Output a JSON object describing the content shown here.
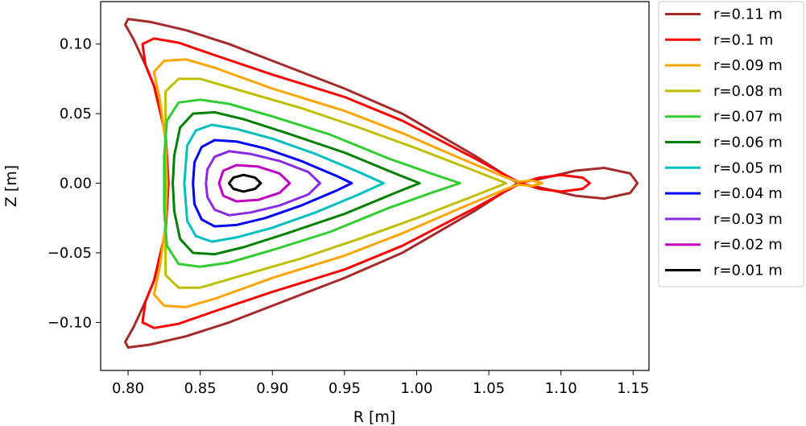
{
  "chart_data": {
    "type": "line",
    "xlabel": "R [m]",
    "ylabel": "Z [m]",
    "xlim": [
      0.781,
      1.161
    ],
    "ylim": [
      -0.1345,
      0.1305
    ],
    "grid": false,
    "legend_position": "outside-right",
    "x_ticks": [
      {
        "value": 0.8,
        "label": "0.80"
      },
      {
        "value": 0.85,
        "label": "0.85"
      },
      {
        "value": 0.9,
        "label": "0.90"
      },
      {
        "value": 0.95,
        "label": "0.95"
      },
      {
        "value": 1.0,
        "label": "1.00"
      },
      {
        "value": 1.05,
        "label": "1.05"
      },
      {
        "value": 1.1,
        "label": "1.10"
      },
      {
        "value": 1.15,
        "label": "1.15"
      }
    ],
    "y_ticks": [
      {
        "value": 0.1,
        "label": "0.10"
      },
      {
        "value": 0.05,
        "label": "0.05"
      },
      {
        "value": 0.0,
        "label": "0.00"
      },
      {
        "value": -0.05,
        "label": "−0.05"
      },
      {
        "value": -0.1,
        "label": "−0.10"
      }
    ],
    "series": [
      {
        "name": "r=0.11 m",
        "color": "#a52a2a",
        "points": [
          [
            1.153,
            0.0
          ],
          [
            1.148,
            0.007
          ],
          [
            1.13,
            0.011
          ],
          [
            1.11,
            0.009
          ],
          [
            1.085,
            0.003
          ],
          [
            1.07,
            0.0
          ],
          [
            1.04,
            0.02
          ],
          [
            0.99,
            0.05
          ],
          [
            0.95,
            0.068
          ],
          [
            0.9,
            0.088
          ],
          [
            0.87,
            0.1
          ],
          [
            0.84,
            0.11
          ],
          [
            0.815,
            0.116
          ],
          [
            0.8,
            0.118
          ],
          [
            0.798,
            0.114
          ],
          [
            0.804,
            0.103
          ],
          [
            0.812,
            0.085
          ],
          [
            0.818,
            0.07
          ],
          [
            0.826,
            0.035
          ],
          [
            0.828,
            0.0
          ],
          [
            0.826,
            -0.035
          ],
          [
            0.818,
            -0.07
          ],
          [
            0.812,
            -0.085
          ],
          [
            0.804,
            -0.103
          ],
          [
            0.798,
            -0.114
          ],
          [
            0.8,
            -0.118
          ],
          [
            0.815,
            -0.116
          ],
          [
            0.84,
            -0.11
          ],
          [
            0.87,
            -0.1
          ],
          [
            0.9,
            -0.088
          ],
          [
            0.95,
            -0.068
          ],
          [
            0.99,
            -0.05
          ],
          [
            1.04,
            -0.02
          ],
          [
            1.07,
            0.0
          ],
          [
            1.085,
            -0.003
          ],
          [
            1.11,
            -0.009
          ],
          [
            1.13,
            -0.011
          ],
          [
            1.148,
            -0.007
          ],
          [
            1.153,
            0.0
          ]
        ]
      },
      {
        "name": "r=0.1 m",
        "color": "#ff0000",
        "points": [
          [
            1.12,
            0.0
          ],
          [
            1.115,
            0.004
          ],
          [
            1.1,
            0.006
          ],
          [
            1.085,
            0.004
          ],
          [
            1.072,
            0.0
          ],
          [
            1.04,
            0.018
          ],
          [
            0.99,
            0.045
          ],
          [
            0.95,
            0.062
          ],
          [
            0.9,
            0.078
          ],
          [
            0.86,
            0.092
          ],
          [
            0.835,
            0.101
          ],
          [
            0.818,
            0.104
          ],
          [
            0.81,
            0.1
          ],
          [
            0.812,
            0.085
          ],
          [
            0.818,
            0.07
          ],
          [
            0.826,
            0.035
          ],
          [
            0.828,
            0.0
          ],
          [
            0.826,
            -0.035
          ],
          [
            0.818,
            -0.07
          ],
          [
            0.812,
            -0.085
          ],
          [
            0.81,
            -0.1
          ],
          [
            0.818,
            -0.104
          ],
          [
            0.835,
            -0.101
          ],
          [
            0.86,
            -0.092
          ],
          [
            0.9,
            -0.078
          ],
          [
            0.95,
            -0.062
          ],
          [
            0.99,
            -0.045
          ],
          [
            1.04,
            -0.018
          ],
          [
            1.072,
            0.0
          ],
          [
            1.085,
            -0.004
          ],
          [
            1.1,
            -0.006
          ],
          [
            1.115,
            -0.004
          ],
          [
            1.12,
            0.0
          ]
        ]
      },
      {
        "name": "r=0.09 m",
        "color": "#ffa500",
        "points": [
          [
            1.087,
            0.0
          ],
          [
            1.08,
            0.002
          ],
          [
            1.07,
            0.001
          ],
          [
            1.06,
            0.005
          ],
          [
            1.03,
            0.018
          ],
          [
            0.99,
            0.036
          ],
          [
            0.95,
            0.052
          ],
          [
            0.9,
            0.068
          ],
          [
            0.86,
            0.083
          ],
          [
            0.84,
            0.089
          ],
          [
            0.825,
            0.088
          ],
          [
            0.818,
            0.08
          ],
          [
            0.822,
            0.06
          ],
          [
            0.826,
            0.03
          ],
          [
            0.827,
            0.0
          ],
          [
            0.826,
            -0.03
          ],
          [
            0.822,
            -0.06
          ],
          [
            0.818,
            -0.08
          ],
          [
            0.825,
            -0.088
          ],
          [
            0.84,
            -0.089
          ],
          [
            0.86,
            -0.083
          ],
          [
            0.9,
            -0.068
          ],
          [
            0.95,
            -0.052
          ],
          [
            0.99,
            -0.036
          ],
          [
            1.03,
            -0.018
          ],
          [
            1.06,
            -0.005
          ],
          [
            1.07,
            -0.001
          ],
          [
            1.08,
            -0.002
          ],
          [
            1.087,
            0.0
          ]
        ]
      },
      {
        "name": "r=0.08 m",
        "color": "#bfbf00",
        "points": [
          [
            1.062,
            0.0
          ],
          [
            1.04,
            0.009
          ],
          [
            1.0,
            0.025
          ],
          [
            0.96,
            0.04
          ],
          [
            0.92,
            0.054
          ],
          [
            0.88,
            0.066
          ],
          [
            0.85,
            0.075
          ],
          [
            0.835,
            0.075
          ],
          [
            0.826,
            0.066
          ],
          [
            0.826,
            0.04
          ],
          [
            0.826,
            0.0
          ],
          [
            0.826,
            -0.04
          ],
          [
            0.826,
            -0.066
          ],
          [
            0.835,
            -0.075
          ],
          [
            0.85,
            -0.075
          ],
          [
            0.88,
            -0.066
          ],
          [
            0.92,
            -0.054
          ],
          [
            0.96,
            -0.04
          ],
          [
            1.0,
            -0.025
          ],
          [
            1.04,
            -0.009
          ],
          [
            1.062,
            0.0
          ]
        ]
      },
      {
        "name": "r=0.07 m",
        "color": "#32cd32",
        "points": [
          [
            1.03,
            0.0
          ],
          [
            1.01,
            0.007
          ],
          [
            0.98,
            0.018
          ],
          [
            0.94,
            0.035
          ],
          [
            0.9,
            0.048
          ],
          [
            0.87,
            0.057
          ],
          [
            0.85,
            0.06
          ],
          [
            0.835,
            0.058
          ],
          [
            0.827,
            0.045
          ],
          [
            0.825,
            0.02
          ],
          [
            0.825,
            0.0
          ],
          [
            0.825,
            -0.02
          ],
          [
            0.827,
            -0.045
          ],
          [
            0.835,
            -0.058
          ],
          [
            0.85,
            -0.06
          ],
          [
            0.87,
            -0.057
          ],
          [
            0.9,
            -0.048
          ],
          [
            0.94,
            -0.035
          ],
          [
            0.98,
            -0.018
          ],
          [
            1.01,
            -0.007
          ],
          [
            1.03,
            0.0
          ]
        ]
      },
      {
        "name": "r=0.06 m",
        "color": "#008000",
        "points": [
          [
            1.002,
            0.0
          ],
          [
            0.985,
            0.007
          ],
          [
            0.95,
            0.022
          ],
          [
            0.91,
            0.036
          ],
          [
            0.88,
            0.046
          ],
          [
            0.86,
            0.051
          ],
          [
            0.845,
            0.05
          ],
          [
            0.836,
            0.04
          ],
          [
            0.832,
            0.02
          ],
          [
            0.831,
            0.0
          ],
          [
            0.832,
            -0.02
          ],
          [
            0.836,
            -0.04
          ],
          [
            0.845,
            -0.05
          ],
          [
            0.86,
            -0.051
          ],
          [
            0.88,
            -0.046
          ],
          [
            0.91,
            -0.036
          ],
          [
            0.95,
            -0.022
          ],
          [
            0.985,
            -0.007
          ],
          [
            1.002,
            0.0
          ]
        ]
      },
      {
        "name": "r=0.05 m",
        "color": "#00bfbf",
        "points": [
          [
            0.977,
            0.0
          ],
          [
            0.96,
            0.008
          ],
          [
            0.93,
            0.021
          ],
          [
            0.9,
            0.032
          ],
          [
            0.875,
            0.039
          ],
          [
            0.858,
            0.042
          ],
          [
            0.847,
            0.038
          ],
          [
            0.841,
            0.027
          ],
          [
            0.839,
            0.0
          ],
          [
            0.841,
            -0.027
          ],
          [
            0.847,
            -0.038
          ],
          [
            0.858,
            -0.042
          ],
          [
            0.875,
            -0.039
          ],
          [
            0.9,
            -0.032
          ],
          [
            0.93,
            -0.021
          ],
          [
            0.96,
            -0.008
          ],
          [
            0.977,
            0.0
          ]
        ]
      },
      {
        "name": "r=0.04 m",
        "color": "#0000ff",
        "points": [
          [
            0.955,
            0.0
          ],
          [
            0.945,
            0.005
          ],
          [
            0.92,
            0.016
          ],
          [
            0.895,
            0.025
          ],
          [
            0.875,
            0.03
          ],
          [
            0.86,
            0.031
          ],
          [
            0.851,
            0.026
          ],
          [
            0.846,
            0.015
          ],
          [
            0.845,
            0.0
          ],
          [
            0.846,
            -0.015
          ],
          [
            0.851,
            -0.026
          ],
          [
            0.86,
            -0.031
          ],
          [
            0.875,
            -0.03
          ],
          [
            0.895,
            -0.025
          ],
          [
            0.92,
            -0.016
          ],
          [
            0.945,
            -0.005
          ],
          [
            0.955,
            0.0
          ]
        ]
      },
      {
        "name": "r=0.03 m",
        "color": "#8a2be2",
        "points": [
          [
            0.933,
            0.0
          ],
          [
            0.925,
            0.008
          ],
          [
            0.905,
            0.016
          ],
          [
            0.885,
            0.021
          ],
          [
            0.87,
            0.023
          ],
          [
            0.86,
            0.019
          ],
          [
            0.855,
            0.01
          ],
          [
            0.854,
            0.0
          ],
          [
            0.855,
            -0.01
          ],
          [
            0.86,
            -0.019
          ],
          [
            0.87,
            -0.023
          ],
          [
            0.885,
            -0.021
          ],
          [
            0.905,
            -0.016
          ],
          [
            0.925,
            -0.008
          ],
          [
            0.933,
            0.0
          ]
        ]
      },
      {
        "name": "r=0.02 m",
        "color": "#bf00bf",
        "points": [
          [
            0.912,
            0.0
          ],
          [
            0.905,
            0.007
          ],
          [
            0.89,
            0.012
          ],
          [
            0.875,
            0.013
          ],
          [
            0.866,
            0.009
          ],
          [
            0.863,
            0.0
          ],
          [
            0.866,
            -0.009
          ],
          [
            0.875,
            -0.013
          ],
          [
            0.89,
            -0.012
          ],
          [
            0.905,
            -0.007
          ],
          [
            0.912,
            0.0
          ]
        ]
      },
      {
        "name": "r=0.01 m",
        "color": "#000000",
        "points": [
          [
            0.892,
            0.0
          ],
          [
            0.888,
            0.004
          ],
          [
            0.88,
            0.006
          ],
          [
            0.873,
            0.004
          ],
          [
            0.87,
            0.0
          ],
          [
            0.873,
            -0.004
          ],
          [
            0.88,
            -0.006
          ],
          [
            0.888,
            -0.004
          ],
          [
            0.892,
            0.0
          ]
        ]
      }
    ]
  }
}
